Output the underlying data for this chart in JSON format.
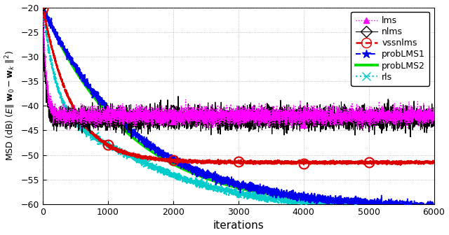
{
  "xlabel": "iterations",
  "xlim": [
    0,
    6000
  ],
  "ylim": [
    -60,
    -20
  ],
  "yticks": [
    -60,
    -55,
    -50,
    -45,
    -40,
    -35,
    -30,
    -25,
    -20
  ],
  "xticks": [
    0,
    1000,
    2000,
    3000,
    4000,
    5000,
    6000
  ],
  "background_color": "#ffffff",
  "grid_color": "#888888",
  "series": {
    "lms": {
      "color": "#ff00ff",
      "linestyle": ":",
      "linewidth": 1.0,
      "marker": "^",
      "markersize": 6,
      "markevery": 1000,
      "markerfacecolor": "#ff00ff",
      "label": "lms",
      "steady": -42.0,
      "rate": 0.02,
      "noise": 0.9,
      "start": -20.0
    },
    "nlms": {
      "color": "#000000",
      "linestyle": "-",
      "linewidth": 0.8,
      "marker": "D",
      "markersize": 8,
      "markevery": 1000,
      "markerfacecolor": "none",
      "label": "nlms",
      "steady": -42.5,
      "rate": 0.025,
      "noise": 1.1,
      "start": -20.0
    },
    "vssnlms": {
      "color": "#dd0000",
      "linestyle": "--",
      "linewidth": 1.8,
      "marker": "o",
      "markersize": 10,
      "markevery": 1000,
      "markerfacecolor": "none",
      "label": "vssnlms",
      "steady": -51.5,
      "rate": 0.0022,
      "noise": 0.15,
      "start": -20.0
    },
    "probLMS1": {
      "color": "#0000ee",
      "linestyle": "--",
      "linewidth": 1.4,
      "marker": "*",
      "markersize": 9,
      "markevery": 800,
      "markerfacecolor": "#0000ee",
      "label": "probLMS1",
      "steady": -61.0,
      "rate": 0.0007,
      "noise": 0.4,
      "start": -20.0
    },
    "probLMS2": {
      "color": "#00dd00",
      "linestyle": "-",
      "linewidth": 2.8,
      "marker": null,
      "markersize": 0,
      "markevery": 800,
      "markerfacecolor": "none",
      "label": "probLMS2",
      "steady": -61.0,
      "rate": 0.00075,
      "noise": 0.0,
      "start": -20.0
    },
    "rls": {
      "color": "#00cccc",
      "linestyle": ":",
      "linewidth": 1.6,
      "marker": "x",
      "markersize": 8,
      "markevery": 800,
      "markerfacecolor": "#00cccc",
      "label": "rls",
      "steady": -61.0,
      "rate": 0.00085,
      "noise": 0.35,
      "start": -20.0
    }
  }
}
